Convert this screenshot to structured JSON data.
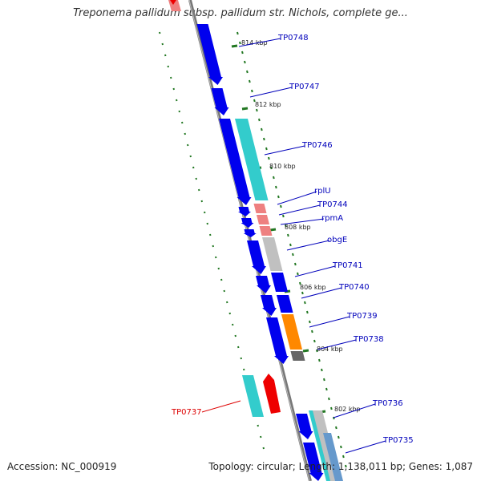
{
  "title": "Treponema pallidum subsp. pallidum str. Nichols, complete ge...",
  "footer": {
    "accession": "Accession: NC_000919",
    "summary": "Topology: circular; Length: 1,138,011 bp; Genes: 1,087"
  },
  "colors": {
    "gene_label": "#0000bb",
    "highlight_label": "#dd0000",
    "blue": "#0000ee",
    "cyan": "#33cccc",
    "salmon": "#ee8080",
    "gray": "#c0c0c0",
    "orange": "#ff8800",
    "red": "#ee0000",
    "tick": "#227722",
    "backbone": "#777777"
  },
  "kbp_labels": [
    "814 kbp",
    "812 kbp",
    "810 kbp",
    "808 kbp",
    "806 kbp",
    "804 kbp",
    "802 kbp"
  ],
  "gene_labels": [
    {
      "name": "TP0748",
      "highlight": false
    },
    {
      "name": "TP0747",
      "highlight": false
    },
    {
      "name": "TP0746",
      "highlight": false
    },
    {
      "name": "rplU",
      "highlight": false
    },
    {
      "name": "TP0744",
      "highlight": false
    },
    {
      "name": "rpmA",
      "highlight": false
    },
    {
      "name": "obgE",
      "highlight": false
    },
    {
      "name": "TP0741",
      "highlight": false
    },
    {
      "name": "TP0740",
      "highlight": false
    },
    {
      "name": "TP0739",
      "highlight": false
    },
    {
      "name": "TP0738",
      "highlight": false
    },
    {
      "name": "TP0737",
      "highlight": true
    },
    {
      "name": "TP0736",
      "highlight": false
    },
    {
      "name": "TP0735",
      "highlight": false
    }
  ]
}
